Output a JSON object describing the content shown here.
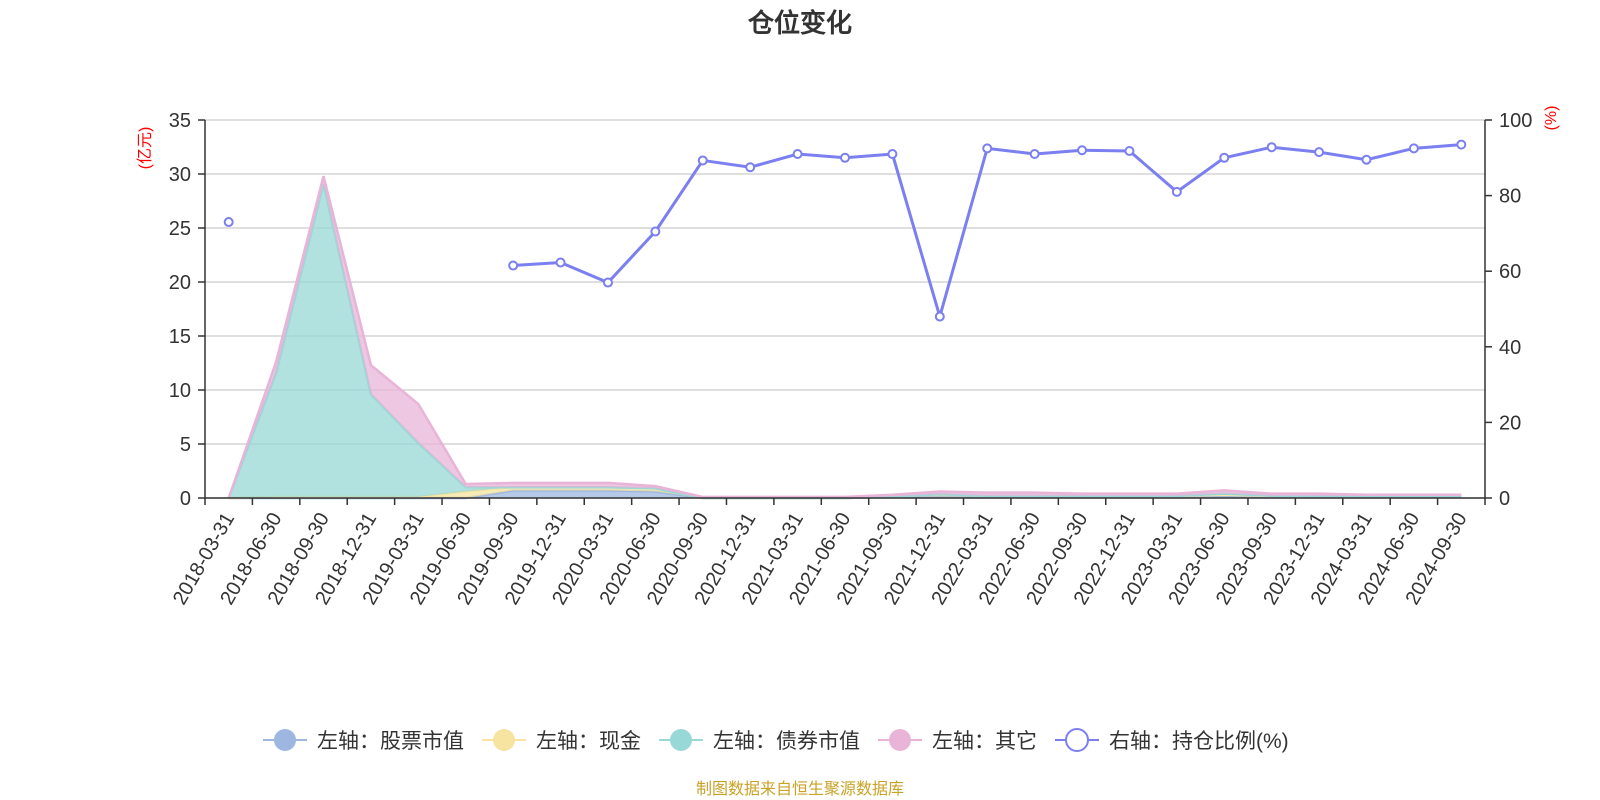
{
  "chart_data": {
    "type": "area",
    "title": "仓位变化",
    "source_note": "制图数据来自恒生聚源数据库",
    "left_axis": {
      "unit": "(亿元)",
      "min": 0,
      "max": 35,
      "ticks": [
        0,
        5,
        10,
        15,
        20,
        25,
        30,
        35
      ]
    },
    "right_axis": {
      "unit": "(%)",
      "min": 0,
      "max": 100,
      "ticks": [
        0,
        20,
        40,
        60,
        80,
        100
      ]
    },
    "x": [
      "2018-03-31",
      "2018-06-30",
      "2018-09-30",
      "2018-12-31",
      "2019-03-31",
      "2019-06-30",
      "2019-09-30",
      "2019-12-31",
      "2020-03-31",
      "2020-06-30",
      "2020-09-30",
      "2020-12-31",
      "2021-03-31",
      "2021-06-30",
      "2021-09-30",
      "2021-12-31",
      "2022-03-31",
      "2022-06-30",
      "2022-09-30",
      "2022-12-31",
      "2023-03-31",
      "2023-06-30",
      "2023-09-30",
      "2023-12-31",
      "2024-03-31",
      "2024-06-30",
      "2024-09-30"
    ],
    "series": [
      {
        "name": "左轴：股票市值",
        "axis": "left",
        "kind": "stacked-area",
        "color": "#9db7e0",
        "values": [
          0,
          0,
          0,
          0,
          0,
          0,
          0.7,
          0.7,
          0.7,
          0.6,
          0,
          0,
          0,
          0,
          0.1,
          0.15,
          0.1,
          0.1,
          0.1,
          0.1,
          0.1,
          0.2,
          0.1,
          0.1,
          0.1,
          0.1,
          0.1
        ]
      },
      {
        "name": "左轴：现金",
        "axis": "left",
        "kind": "stacked-area",
        "color": "#f7e4a0",
        "values": [
          0,
          0.1,
          0.1,
          0.1,
          0.1,
          0.6,
          0.3,
          0.3,
          0.3,
          0.3,
          0,
          0,
          0,
          0,
          0.05,
          0.2,
          0.1,
          0.1,
          0.1,
          0.1,
          0.1,
          0.1,
          0.1,
          0.1,
          0.1,
          0.1,
          0.1
        ]
      },
      {
        "name": "左轴：债券市值",
        "axis": "left",
        "kind": "stacked-area",
        "color": "#98d8d6",
        "values": [
          0,
          11.5,
          29.0,
          9.5,
          5.0,
          0.4,
          0,
          0,
          0,
          0,
          0,
          0,
          0,
          0,
          0,
          0,
          0,
          0,
          0,
          0,
          0,
          0.1,
          0,
          0,
          0,
          0,
          0
        ]
      },
      {
        "name": "左轴：其它",
        "axis": "left",
        "kind": "stacked-area",
        "color": "#e8b4d8",
        "values": [
          0,
          1.0,
          0.7,
          2.7,
          3.6,
          0.3,
          0.4,
          0.4,
          0.4,
          0.2,
          0.1,
          0.1,
          0.1,
          0.1,
          0.15,
          0.25,
          0.3,
          0.3,
          0.2,
          0.2,
          0.2,
          0.3,
          0.2,
          0.2,
          0.1,
          0.1,
          0.1
        ]
      },
      {
        "name": "右轴：持仓比例(%)",
        "axis": "right",
        "kind": "line",
        "color": "#7b7ff0",
        "values": [
          73,
          null,
          null,
          null,
          null,
          null,
          61.5,
          62.3,
          57,
          70.5,
          89.3,
          87.5,
          91,
          90,
          91,
          48,
          92.5,
          91,
          92,
          91.8,
          81,
          90,
          92.8,
          91.5,
          89.5,
          92.5,
          93.5
        ]
      }
    ],
    "legend_position": "bottom",
    "grid": true
  }
}
